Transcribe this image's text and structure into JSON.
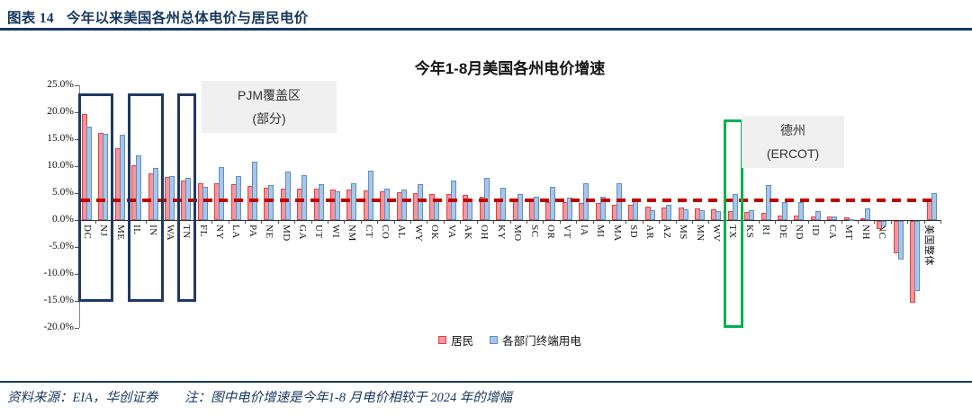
{
  "figure_header": {
    "label": "图表 14",
    "title": "今年以来美国各州总体电价与居民电价"
  },
  "chart_data": {
    "type": "bar",
    "title": "今年1-8月美国各州电价增速",
    "categories": [
      "DC",
      "NJ",
      "ME",
      "IL",
      "IN",
      "WA",
      "TN",
      "FL",
      "NY",
      "LA",
      "PA",
      "NE",
      "MD",
      "GA",
      "UT",
      "WI",
      "NM",
      "CT",
      "CO",
      "AL",
      "WY",
      "OK",
      "VA",
      "AK",
      "OH",
      "KY",
      "MO",
      "SC",
      "OR",
      "VT",
      "IA",
      "MI",
      "MA",
      "SD",
      "AR",
      "AZ",
      "MS",
      "MN",
      "WV",
      "TX",
      "KS",
      "RI",
      "DE",
      "ND",
      "ID",
      "CA",
      "MT",
      "NH",
      "NC",
      "HI",
      "NV",
      "美国整体"
    ],
    "series": [
      {
        "name": "居民",
        "fill": "#F4969B",
        "border": "#E04048",
        "values": [
          19.6,
          16.2,
          13.4,
          10.2,
          8.7,
          8.0,
          7.3,
          6.9,
          6.9,
          6.6,
          6.3,
          6.0,
          5.9,
          5.8,
          5.8,
          5.7,
          5.7,
          5.5,
          5.4,
          5.1,
          5.0,
          4.9,
          4.8,
          4.7,
          4.3,
          4.0,
          3.9,
          3.6,
          3.4,
          3.3,
          3.2,
          3.1,
          2.9,
          2.8,
          2.5,
          2.4,
          2.3,
          2.1,
          2.0,
          1.7,
          1.5,
          1.3,
          0.9,
          0.8,
          0.7,
          0.6,
          0.5,
          0.3,
          -1.5,
          -6.0,
          -15.2,
          3.7
        ]
      },
      {
        "name": "各部门终端用电",
        "fill": "#A8C6E8",
        "border": "#5E8FC4",
        "values": [
          17.4,
          16.0,
          15.9,
          12.0,
          9.7,
          8.2,
          7.9,
          6.1,
          9.8,
          8.2,
          10.8,
          6.5,
          9.0,
          8.3,
          6.6,
          5.3,
          6.9,
          9.2,
          5.9,
          5.7,
          6.7,
          3.5,
          7.3,
          3.8,
          7.9,
          6.0,
          4.9,
          4.3,
          6.2,
          4.1,
          6.8,
          4.3,
          6.9,
          4.0,
          1.9,
          2.8,
          2.0,
          1.8,
          1.7,
          4.8,
          1.8,
          6.5,
          3.4,
          3.3,
          1.6,
          0.7,
          0.1,
          2.1,
          -1.0,
          -7.2,
          -13.0,
          5.0
        ]
      }
    ],
    "ylim": [
      -20,
      25
    ],
    "ytick_step": 5,
    "ytick_labels": [
      "25.0%",
      "20.0%",
      "15.0%",
      "10.0%",
      "5.0%",
      "0.0%",
      "-5.0%",
      "-10.0%",
      "-15.0%",
      "-20.0%"
    ],
    "grid": false,
    "legend_position": "bottom",
    "reference_line": {
      "value": 3.7,
      "color": "#C00000",
      "style": "dashed"
    },
    "annotations": [
      {
        "id": "pjm",
        "lines": [
          "PJM覆盖区",
          "(部分)"
        ]
      },
      {
        "id": "ercot",
        "lines": [
          "德州",
          "(ERCOT)"
        ]
      }
    ],
    "highlight_boxes": [
      {
        "name": "highlight-box-pjm-dc-nj",
        "color": "#203864",
        "group_start": 0,
        "group_end": 1,
        "from_pct": 23.5,
        "to_pct": -15.2
      },
      {
        "name": "highlight-box-pjm-il-in",
        "color": "#203864",
        "group_start": 3,
        "group_end": 4,
        "from_pct": 23.5,
        "to_pct": -15.2
      },
      {
        "name": "highlight-box-pjm-tn",
        "color": "#203864",
        "group_start": 6,
        "group_end": 6,
        "from_pct": 23.5,
        "to_pct": -15.2
      },
      {
        "name": "highlight-box-ercot-tx",
        "color": "#00B050",
        "group_start": 39,
        "group_end": 39,
        "from_pct": 18.7,
        "to_pct": -20.0
      }
    ]
  },
  "footer": {
    "source": "资料来源：EIA，华创证券",
    "note": "注：图中电价增速是今年1-8 月电价相较于 2024 年的增幅"
  }
}
